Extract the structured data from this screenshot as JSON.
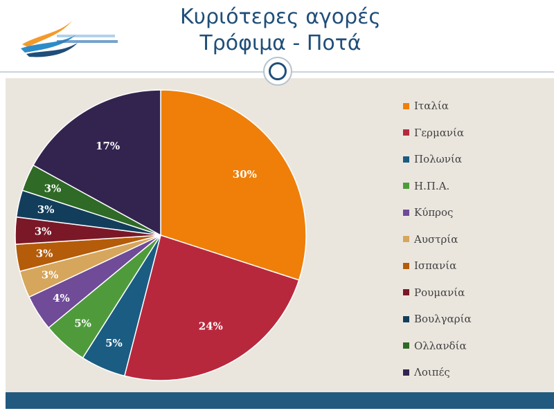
{
  "header": {
    "title_line1": "Κυριότερες αγορές",
    "title_line2": "Τρόφιμα - Ποτά"
  },
  "chart_data": {
    "type": "pie",
    "title": "Κυριότερες αγορές Τρόφιμα - Ποτά",
    "legend_position": "right",
    "start_angle_deg": 0,
    "direction": "clockwise",
    "slices": [
      {
        "label": "Ιταλία",
        "value": 30,
        "text": "30%",
        "color": "#ef7f09"
      },
      {
        "label": "Γερμανία",
        "value": 24,
        "text": "24%",
        "color": "#b8283d"
      },
      {
        "label": "Πολωνία",
        "value": 5,
        "text": "5%",
        "color": "#1b5c82"
      },
      {
        "label": "Η.Π.Α.",
        "value": 5,
        "text": "5%",
        "color": "#4f9b3c"
      },
      {
        "label": "Κύπρος",
        "value": 4,
        "text": "4%",
        "color": "#6f4b98"
      },
      {
        "label": "Αυστρία",
        "value": 3,
        "text": "3%",
        "color": "#d6a65c"
      },
      {
        "label": "Ισπανία",
        "value": 3,
        "text": "3%",
        "color": "#b45c09"
      },
      {
        "label": "Ρουμανία",
        "value": 3,
        "text": "3%",
        "color": "#7a1828"
      },
      {
        "label": "Βουλγαρία",
        "value": 3,
        "text": "3%",
        "color": "#123e5c"
      },
      {
        "label": "Ολλανδία",
        "value": 3,
        "text": "3%",
        "color": "#2f6a26"
      },
      {
        "label": "Λοιπές",
        "value": 17,
        "text": "17%",
        "color": "#33244f"
      }
    ]
  }
}
